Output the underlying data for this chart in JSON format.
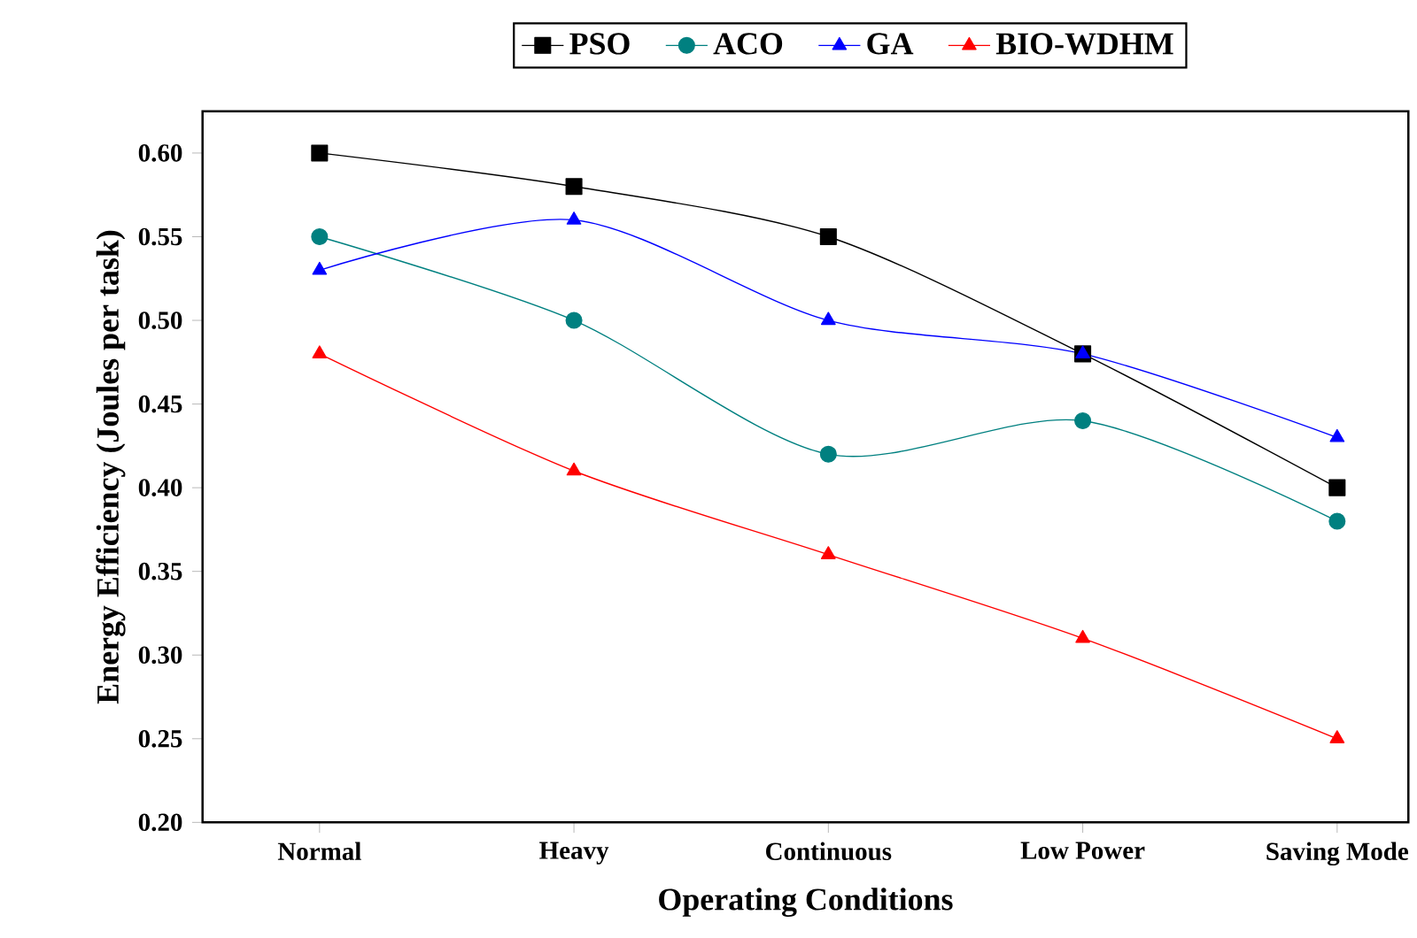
{
  "chart_data": {
    "type": "line",
    "xlabel": "Operating Conditions",
    "ylabel": "Energy Efficiency (Joules per task)",
    "categories": [
      "Normal",
      "Heavy",
      "Continuous",
      "Low Power",
      "Saving Mode"
    ],
    "series": [
      {
        "name": "PSO",
        "color": "#000000",
        "marker": "square",
        "values": [
          0.6,
          0.58,
          0.55,
          0.48,
          0.4
        ]
      },
      {
        "name": "ACO",
        "color": "#008080",
        "marker": "circle",
        "values": [
          0.55,
          0.5,
          0.42,
          0.44,
          0.38
        ]
      },
      {
        "name": "GA",
        "color": "#0000ff",
        "marker": "triangle",
        "values": [
          0.53,
          0.56,
          0.5,
          0.48,
          0.43
        ]
      },
      {
        "name": "BIO-WDHM",
        "color": "#ff0000",
        "marker": "triangle down",
        "values": [
          0.48,
          0.41,
          0.36,
          0.31,
          0.25
        ]
      }
    ],
    "ylim": [
      0.2,
      0.625
    ],
    "yticks": [
      {
        "value": 0.2,
        "label": "0.20"
      },
      {
        "value": 0.25,
        "label": "0.25"
      },
      {
        "value": 0.3,
        "label": "0.30"
      },
      {
        "value": 0.35,
        "label": "0.35"
      },
      {
        "value": 0.4,
        "label": "0.40"
      },
      {
        "value": 0.45,
        "label": "0.45"
      },
      {
        "value": 0.5,
        "label": "0.50"
      },
      {
        "value": 0.55,
        "label": "0.55"
      },
      {
        "value": 0.6,
        "label": "0.60"
      }
    ],
    "grid": false,
    "legend": "top",
    "line_style": "solid"
  }
}
